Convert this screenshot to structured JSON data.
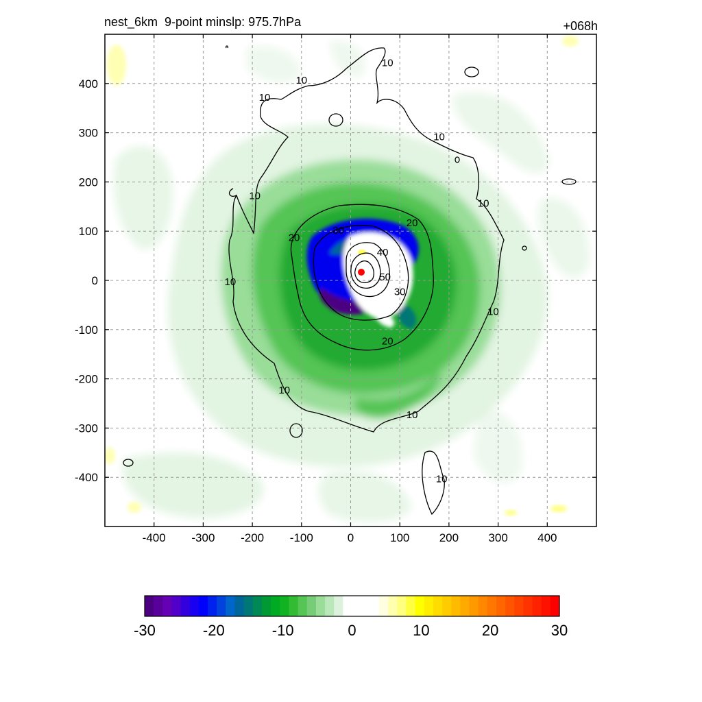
{
  "chart_data": {
    "type": "heatmap",
    "title_left": "nest_6km  9-point minslp: 975.7hPa",
    "title_right": "+068h",
    "xlim": [
      -500,
      500
    ],
    "ylim": [
      -500,
      500
    ],
    "x_ticks": [
      -400,
      -300,
      -200,
      -100,
      0,
      100,
      200,
      300,
      400
    ],
    "y_ticks": [
      400,
      300,
      200,
      100,
      0,
      -100,
      -200,
      -300,
      -400
    ],
    "grid": "dashed",
    "contour_levels": [
      10,
      20,
      30,
      40,
      50
    ],
    "contour_labels": [
      {
        "text": "10",
        "x": -100,
        "y": 400
      },
      {
        "text": "10",
        "x": -175,
        "y": 365
      },
      {
        "text": "10",
        "x": 75,
        "y": 435
      },
      {
        "text": "10",
        "x": 180,
        "y": 285
      },
      {
        "text": "10",
        "x": -195,
        "y": 165
      },
      {
        "text": "10",
        "x": 270,
        "y": 150
      },
      {
        "text": "10",
        "x": -245,
        "y": -10
      },
      {
        "text": "10",
        "x": 290,
        "y": -70
      },
      {
        "text": "10",
        "x": -135,
        "y": -230
      },
      {
        "text": "10",
        "x": 125,
        "y": -280
      },
      {
        "text": "10",
        "x": 185,
        "y": -410
      },
      {
        "text": "20",
        "x": 125,
        "y": 110
      },
      {
        "text": "20",
        "x": -115,
        "y": 80
      },
      {
        "text": "20",
        "x": 75,
        "y": -130
      },
      {
        "text": "30",
        "x": -25,
        "y": 95
      },
      {
        "text": "30",
        "x": 100,
        "y": -30
      },
      {
        "text": "40",
        "x": 65,
        "y": 50
      },
      {
        "text": "50",
        "x": 70,
        "y": 0
      }
    ],
    "center": {
      "x": 20,
      "y": 15
    },
    "colorbar": {
      "min": -30,
      "max": 30,
      "ticks": [
        -30,
        -20,
        -10,
        0,
        10,
        20,
        30
      ],
      "colors": [
        "#4b0082",
        "#5a009a",
        "#6600b4",
        "#5000c8",
        "#3300dd",
        "#1a00f0",
        "#0000ff",
        "#0022ee",
        "#0044dd",
        "#0066cc",
        "#006699",
        "#007777",
        "#008855",
        "#009933",
        "#00aa22",
        "#11b322",
        "#33bb33",
        "#55c555",
        "#77cc77",
        "#99dd99",
        "#bbe8bb",
        "#ddf2dd",
        "#ffffff",
        "#ffffff",
        "#ffffff",
        "#ffffff",
        "#ffffe0",
        "#ffffb0",
        "#ffff80",
        "#ffff40",
        "#ffff00",
        "#ffee00",
        "#ffdd00",
        "#ffcc00",
        "#ffbb00",
        "#ffaa00",
        "#ff9900",
        "#ff8800",
        "#ff7700",
        "#ff6600",
        "#ff5500",
        "#ff4400",
        "#ff3300",
        "#ff2200",
        "#ff1100",
        "#ff0000"
      ]
    }
  }
}
